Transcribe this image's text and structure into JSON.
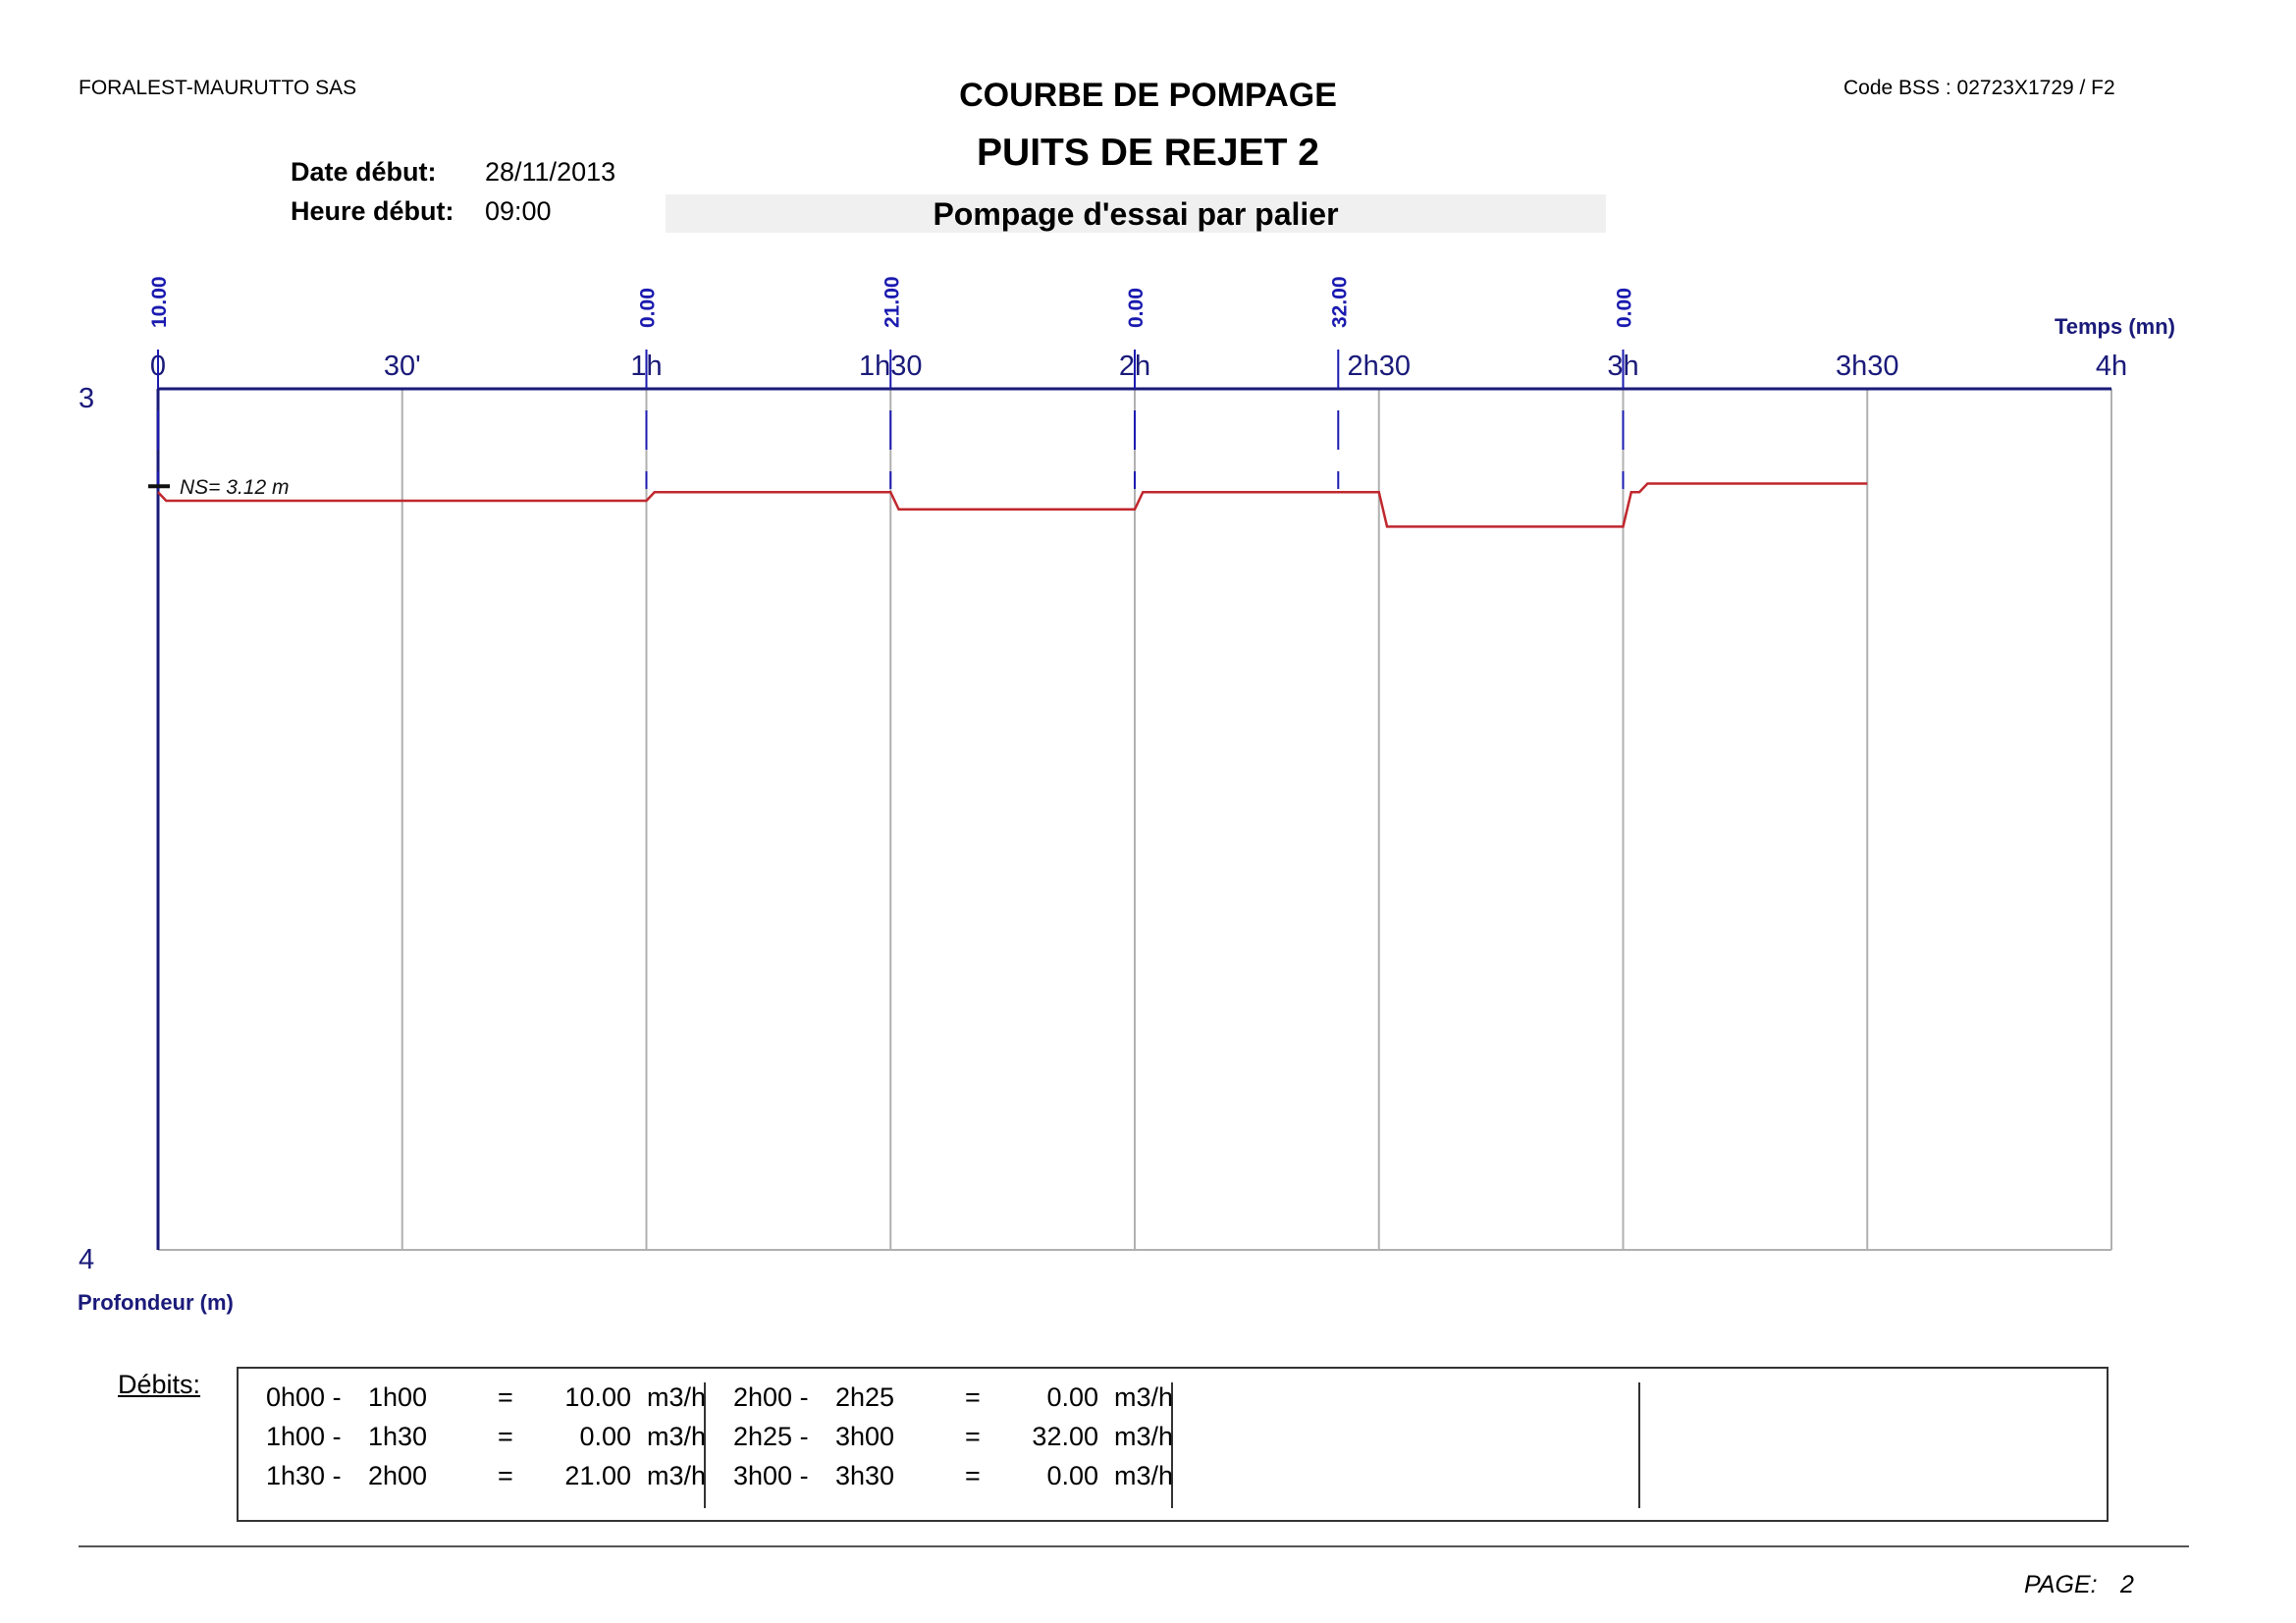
{
  "header": {
    "company": "FORALEST-MAURUTTO SAS",
    "code": "Code BSS : 02723X1729 / F2",
    "title": "COURBE DE POMPAGE",
    "subtitle": "PUITS DE REJET 2",
    "date_label": "Date début:",
    "date_value": "28/11/2013",
    "time_label": "Heure début:",
    "time_value": "09:00",
    "test_type": "Pompage d'essai par palier"
  },
  "chart_data": {
    "type": "line",
    "xlabel": "Temps (mn)",
    "ylabel": "Profondeur (m)",
    "xlim": [
      0,
      240
    ],
    "ylim": [
      3,
      4
    ],
    "y_inverted": true,
    "x_ticks": [
      {
        "value": 0,
        "label": "0"
      },
      {
        "value": 30,
        "label": "30'"
      },
      {
        "value": 60,
        "label": "1h"
      },
      {
        "value": 90,
        "label": "1h30"
      },
      {
        "value": 120,
        "label": "2h"
      },
      {
        "value": 150,
        "label": "2h30"
      },
      {
        "value": 180,
        "label": "3h"
      },
      {
        "value": 210,
        "label": "3h30"
      },
      {
        "value": 240,
        "label": "4h"
      }
    ],
    "y_ticks": [
      {
        "value": 3,
        "label": "3"
      },
      {
        "value": 4,
        "label": "4"
      }
    ],
    "grid": true,
    "static_level": {
      "value": 3.12,
      "label": "NS= 3.12 m"
    },
    "step_markers": [
      {
        "x": 0,
        "label": "10.00"
      },
      {
        "x": 60,
        "label": "0.00"
      },
      {
        "x": 90,
        "label": "21.00"
      },
      {
        "x": 120,
        "label": "0.00"
      },
      {
        "x": 145,
        "label": "32.00"
      },
      {
        "x": 180,
        "label": "0.00"
      }
    ],
    "series": [
      {
        "color": "#c0272d",
        "x": [
          0,
          1,
          60,
          61,
          90,
          91,
          120,
          121,
          150,
          151,
          180,
          181,
          182,
          183,
          210
        ],
        "y": [
          3.12,
          3.13,
          3.13,
          3.12,
          3.12,
          3.14,
          3.14,
          3.12,
          3.12,
          3.16,
          3.16,
          3.12,
          3.12,
          3.11,
          3.11
        ]
      }
    ],
    "colors": {
      "axis": "#1a1a7a",
      "grid": "#b0b0b0",
      "marker": "#1a1ab0",
      "curve": "#c0272d"
    }
  },
  "debits": {
    "label": "Débits:",
    "columns": [
      [
        {
          "from": "0h00 -",
          "to": "1h00",
          "eq": "=",
          "value": "10.00",
          "unit": "m3/h"
        },
        {
          "from": "1h00 -",
          "to": "1h30",
          "eq": "=",
          "value": "0.00",
          "unit": "m3/h"
        },
        {
          "from": "1h30 -",
          "to": "2h00",
          "eq": "=",
          "value": "21.00",
          "unit": "m3/h"
        }
      ],
      [
        {
          "from": "2h00 -",
          "to": "2h25",
          "eq": "=",
          "value": "0.00",
          "unit": "m3/h"
        },
        {
          "from": "2h25 -",
          "to": "3h00",
          "eq": "=",
          "value": "32.00",
          "unit": "m3/h"
        },
        {
          "from": "3h00 -",
          "to": "3h30",
          "eq": "=",
          "value": "0.00",
          "unit": "m3/h"
        }
      ]
    ]
  },
  "footer": {
    "page_label": "PAGE:",
    "page_number": "2"
  }
}
